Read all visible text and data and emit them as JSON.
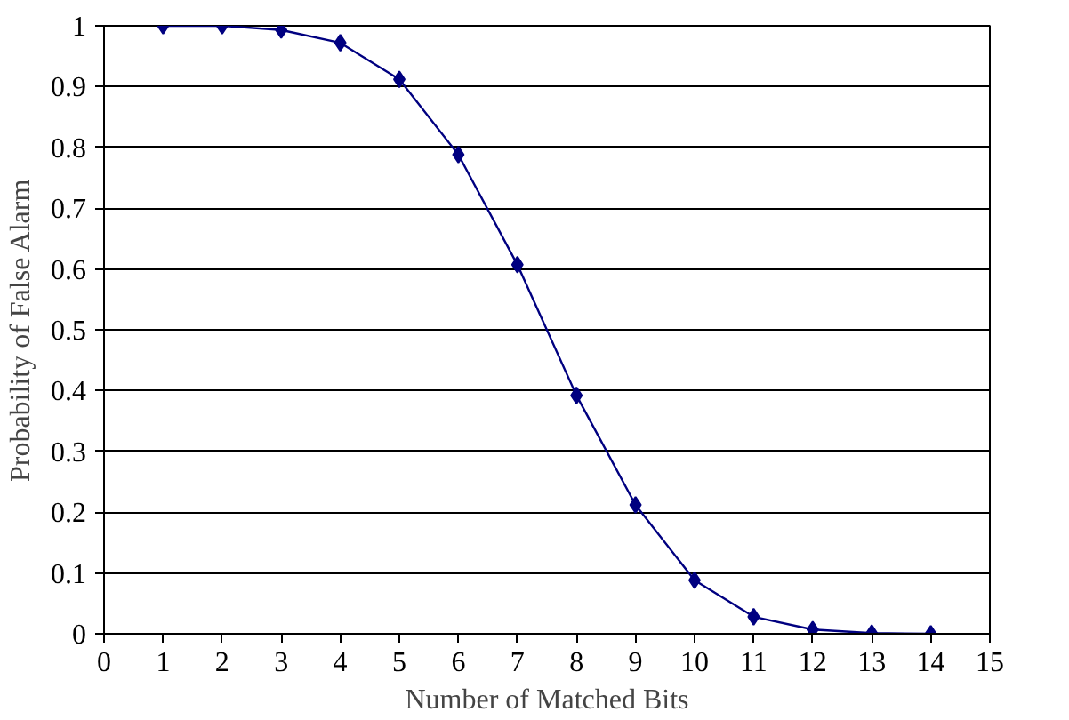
{
  "chart_data": {
    "type": "line",
    "xlabel": "Number of Matched Bits",
    "ylabel": "Probability of False Alarm",
    "x": [
      1,
      2,
      3,
      4,
      5,
      6,
      7,
      8,
      9,
      10,
      11,
      12,
      13,
      14
    ],
    "series": [
      {
        "color": "#000080",
        "values": [
          1.0,
          1.0,
          0.993,
          0.972,
          0.912,
          0.788,
          0.607,
          0.392,
          0.212,
          0.088,
          0.028,
          0.007,
          0.001,
          0.0
        ]
      }
    ],
    "xlim": [
      0,
      15
    ],
    "xticks": [
      0,
      1,
      2,
      3,
      4,
      5,
      6,
      7,
      8,
      9,
      10,
      11,
      12,
      13,
      14,
      15
    ],
    "ylim": [
      0,
      1
    ],
    "yticks": [
      0,
      0.1,
      0.2,
      0.3,
      0.4,
      0.5,
      0.6,
      0.7,
      0.8,
      0.9,
      1
    ],
    "grid": "y",
    "marker": "diamond",
    "line_style": "solid"
  }
}
